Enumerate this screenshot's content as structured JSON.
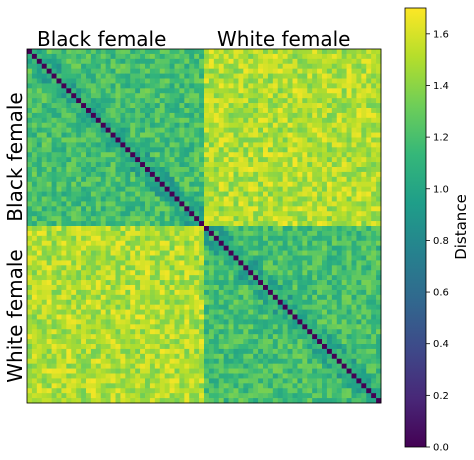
{
  "chart_data": {
    "type": "heatmap",
    "n": 72,
    "groups": [
      {
        "name": "Black female",
        "size": 36
      },
      {
        "name": "White female",
        "size": 36
      }
    ],
    "within_group_mean": 1.18,
    "between_group_mean": 1.5,
    "noise_range": 0.18,
    "diagonal_value": 0.0,
    "colorbar": {
      "label": "Distance",
      "min": 0.0,
      "max": 1.7,
      "ticks": [
        0.0,
        0.2,
        0.4,
        0.6,
        0.8,
        1.0,
        1.2,
        1.4,
        1.6
      ],
      "tick_labels": [
        "0.0",
        "0.2",
        "0.4",
        "0.6",
        "0.8",
        "1.0",
        "1.2",
        "1.4",
        "1.6"
      ]
    },
    "colormap": [
      "#440154",
      "#482878",
      "#3e4989",
      "#31688e",
      "#26828e",
      "#1f9e89",
      "#35b779",
      "#6ece58",
      "#b5de2b",
      "#fde725"
    ]
  }
}
